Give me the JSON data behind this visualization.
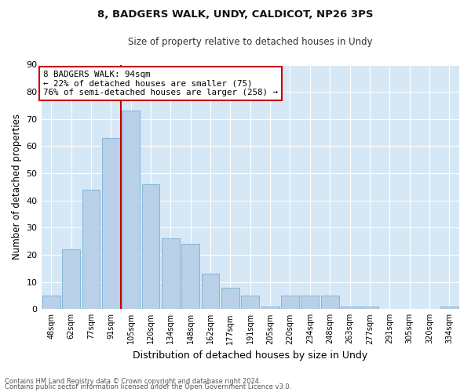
{
  "title_line1": "8, BADGERS WALK, UNDY, CALDICOT, NP26 3PS",
  "title_line2": "Size of property relative to detached houses in Undy",
  "xlabel": "Distribution of detached houses by size in Undy",
  "ylabel": "Number of detached properties",
  "bar_labels": [
    "48sqm",
    "62sqm",
    "77sqm",
    "91sqm",
    "105sqm",
    "120sqm",
    "134sqm",
    "148sqm",
    "162sqm",
    "177sqm",
    "191sqm",
    "205sqm",
    "220sqm",
    "234sqm",
    "248sqm",
    "263sqm",
    "277sqm",
    "291sqm",
    "305sqm",
    "320sqm",
    "334sqm"
  ],
  "bar_values": [
    5,
    22,
    44,
    63,
    73,
    46,
    26,
    24,
    13,
    8,
    5,
    1,
    5,
    5,
    5,
    1,
    1,
    0,
    0,
    0,
    1
  ],
  "bar_color": "#b8d0e8",
  "bar_edge_color": "#7aafd4",
  "vline_color": "#cc0000",
  "annotation_text": "8 BADGERS WALK: 94sqm\n← 22% of detached houses are smaller (75)\n76% of semi-detached houses are larger (258) →",
  "annotation_box_color": "#ffffff",
  "annotation_box_edge": "#cc0000",
  "plot_bg_color": "#d6e8f5",
  "ylim": [
    0,
    90
  ],
  "yticks": [
    0,
    10,
    20,
    30,
    40,
    50,
    60,
    70,
    80,
    90
  ],
  "footer_line1": "Contains HM Land Registry data © Crown copyright and database right 2024.",
  "footer_line2": "Contains public sector information licensed under the Open Government Licence v3.0."
}
